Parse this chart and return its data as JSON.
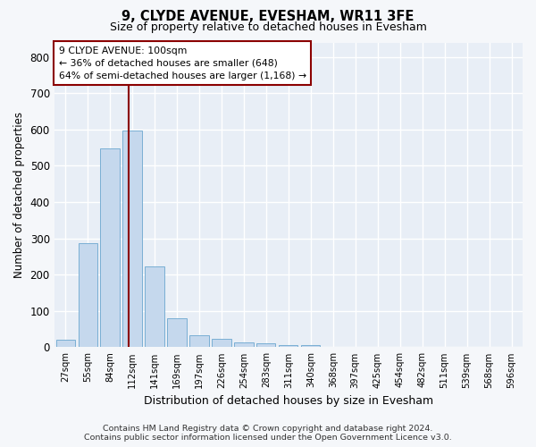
{
  "title": "9, CLYDE AVENUE, EVESHAM, WR11 3FE",
  "subtitle": "Size of property relative to detached houses in Evesham",
  "xlabel": "Distribution of detached houses by size in Evesham",
  "ylabel": "Number of detached properties",
  "bar_color": "#c5d8ed",
  "bar_edge_color": "#7aafd4",
  "background_color": "#e8eef6",
  "grid_color": "#ffffff",
  "fig_facecolor": "#f5f7fa",
  "categories": [
    "27sqm",
    "55sqm",
    "84sqm",
    "112sqm",
    "141sqm",
    "169sqm",
    "197sqm",
    "226sqm",
    "254sqm",
    "283sqm",
    "311sqm",
    "340sqm",
    "368sqm",
    "397sqm",
    "425sqm",
    "454sqm",
    "482sqm",
    "511sqm",
    "539sqm",
    "568sqm",
    "596sqm"
  ],
  "values": [
    22,
    288,
    548,
    597,
    222,
    80,
    34,
    23,
    13,
    10,
    7,
    5,
    0,
    0,
    0,
    0,
    0,
    0,
    0,
    0,
    0
  ],
  "ylim": [
    0,
    840
  ],
  "yticks": [
    0,
    100,
    200,
    300,
    400,
    500,
    600,
    700,
    800
  ],
  "property_line_x": 2.85,
  "property_line_color": "#8b0000",
  "annotation_text": "9 CLYDE AVENUE: 100sqm\n← 36% of detached houses are smaller (648)\n64% of semi-detached houses are larger (1,168) →",
  "annotation_box_color": "#8b0000",
  "annotation_box_facecolor": "#ffffff",
  "footer_line1": "Contains HM Land Registry data © Crown copyright and database right 2024.",
  "footer_line2": "Contains public sector information licensed under the Open Government Licence v3.0."
}
